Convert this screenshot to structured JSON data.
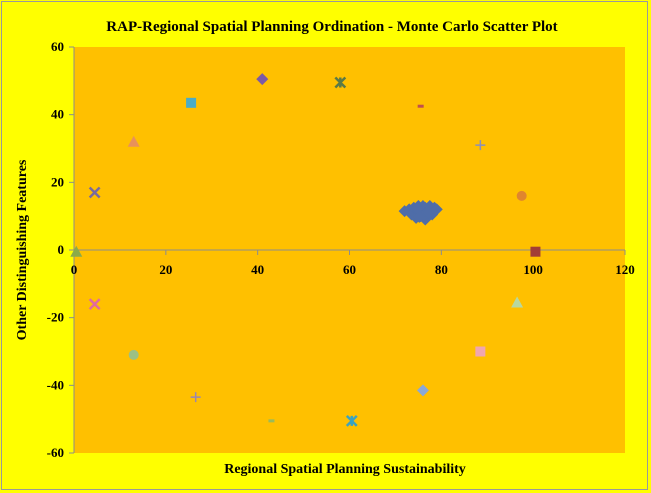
{
  "chart_data": {
    "type": "scatter",
    "title": "RAP-Regional Spatial Planning Ordination  - Monte Carlo Scatter Plot",
    "xlabel": "Regional Spatial Planning Sustainability",
    "ylabel": "Other Distinguishing Features",
    "xlim": [
      0,
      120
    ],
    "ylim": [
      -60,
      60
    ],
    "xticks": [
      0,
      20,
      40,
      60,
      80,
      100,
      120
    ],
    "yticks": [
      -60,
      -40,
      -20,
      0,
      20,
      40,
      60
    ],
    "grid": false,
    "legend": "none",
    "plot_background": "#FFC000",
    "page_background": "#FFFF00",
    "series": [
      {
        "marker": "diamond",
        "color": "#4F6DA8",
        "points": [
          [
            72,
            11.5
          ],
          [
            73,
            12
          ],
          [
            73.5,
            10.5
          ],
          [
            74,
            11
          ],
          [
            74,
            12.5
          ],
          [
            74.5,
            9.5
          ],
          [
            75,
            13
          ],
          [
            75,
            11.5
          ],
          [
            75.5,
            10
          ],
          [
            75.5,
            12
          ],
          [
            76,
            11
          ],
          [
            76,
            13
          ],
          [
            76.5,
            9
          ],
          [
            76.5,
            12.5
          ],
          [
            77,
            11.5
          ],
          [
            77,
            10
          ],
          [
            77.5,
            13
          ],
          [
            77.5,
            12
          ],
          [
            78,
            11
          ],
          [
            78,
            10.5
          ],
          [
            78.5,
            12.5
          ],
          [
            79,
            12
          ],
          [
            74.8,
            12.2
          ],
          [
            76.2,
            10.2
          ],
          [
            77.2,
            11
          ],
          [
            75.2,
            9.8
          ]
        ]
      },
      {
        "marker": "square",
        "color": "#A23D36",
        "points": [
          [
            100.5,
            -0.5
          ]
        ]
      },
      {
        "marker": "triangle",
        "color": "#8BAA4A",
        "points": [
          [
            0.5,
            -0.5
          ]
        ]
      },
      {
        "marker": "x",
        "color": "#7A6A9E",
        "points": [
          [
            4.5,
            17
          ]
        ]
      },
      {
        "marker": "star",
        "color": "#3CA3BF",
        "points": [
          [
            60.5,
            -50.5
          ]
        ]
      },
      {
        "marker": "circle",
        "color": "#E0852E",
        "points": [
          [
            97.5,
            16
          ]
        ]
      },
      {
        "marker": "plus",
        "color": "#8A8FBD",
        "points": [
          [
            88.5,
            31
          ]
        ]
      },
      {
        "marker": "dash",
        "color": "#C0504D",
        "points": [
          [
            75.5,
            42.5
          ]
        ]
      },
      {
        "marker": "dash",
        "color": "#9BBB59",
        "points": [
          [
            43,
            -50.5
          ]
        ]
      },
      {
        "marker": "diamond",
        "color": "#7B5AA6",
        "points": [
          [
            41,
            50.5
          ]
        ]
      },
      {
        "marker": "square",
        "color": "#4BACC6",
        "points": [
          [
            25.5,
            43.5
          ]
        ]
      },
      {
        "marker": "triangle",
        "color": "#E8915A",
        "points": [
          [
            13,
            32
          ]
        ]
      },
      {
        "marker": "x",
        "color": "#E06AA0",
        "points": [
          [
            4.5,
            -16
          ]
        ]
      },
      {
        "marker": "star",
        "color": "#5C7A46",
        "points": [
          [
            58,
            49.5
          ]
        ]
      },
      {
        "marker": "circle",
        "color": "#9CC084",
        "points": [
          [
            13,
            -31
          ]
        ]
      },
      {
        "marker": "plus",
        "color": "#9A86B0",
        "points": [
          [
            26.5,
            -43.5
          ]
        ]
      },
      {
        "marker": "diamond",
        "color": "#8AA8D8",
        "points": [
          [
            76,
            -41.5
          ]
        ]
      },
      {
        "marker": "square",
        "color": "#F0A6B0",
        "points": [
          [
            88.5,
            -30
          ]
        ]
      },
      {
        "marker": "triangle",
        "color": "#B8D8A0",
        "points": [
          [
            96.5,
            -15.5
          ]
        ]
      }
    ]
  }
}
